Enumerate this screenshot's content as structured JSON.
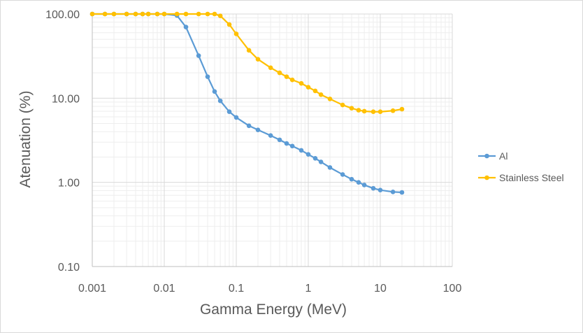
{
  "chart_data": {
    "type": "line",
    "title": "",
    "xlabel": "Gamma Energy (MeV)",
    "ylabel": "Atenuation (%)",
    "x_scale": "log",
    "y_scale": "log",
    "xlim": [
      0.001,
      100
    ],
    "ylim": [
      0.1,
      100
    ],
    "x_ticks": [
      "0.001",
      "0.01",
      "0.1",
      "1",
      "10",
      "100"
    ],
    "y_ticks": [
      "100.00",
      "10.00",
      "1.00",
      "0.10"
    ],
    "grid": true,
    "legend_position": "right",
    "series": [
      {
        "name": "Al",
        "color": "#5b9bd5",
        "x": [
          0.001,
          0.0015,
          0.002,
          0.003,
          0.004,
          0.005,
          0.006,
          0.008,
          0.01,
          0.015,
          0.02,
          0.03,
          0.04,
          0.05,
          0.06,
          0.08,
          0.1,
          0.15,
          0.2,
          0.3,
          0.4,
          0.5,
          0.6,
          0.8,
          1,
          1.25,
          1.5,
          2,
          3,
          4,
          5,
          6,
          8,
          10,
          15,
          20
        ],
        "y": [
          100,
          100,
          100,
          100,
          100,
          100,
          100,
          100,
          100,
          96,
          70,
          32,
          18,
          12,
          9.3,
          6.9,
          5.9,
          4.7,
          4.2,
          3.6,
          3.2,
          2.9,
          2.7,
          2.4,
          2.15,
          1.93,
          1.75,
          1.5,
          1.24,
          1.09,
          1.0,
          0.93,
          0.85,
          0.81,
          0.77,
          0.76
        ]
      },
      {
        "name": "Stainless Steel",
        "color": "#ffc000",
        "x": [
          0.001,
          0.0015,
          0.002,
          0.003,
          0.004,
          0.005,
          0.006,
          0.008,
          0.01,
          0.015,
          0.02,
          0.03,
          0.04,
          0.05,
          0.06,
          0.08,
          0.1,
          0.15,
          0.2,
          0.3,
          0.4,
          0.5,
          0.6,
          0.8,
          1,
          1.25,
          1.5,
          2,
          3,
          4,
          5,
          6,
          8,
          10,
          15,
          20
        ],
        "y": [
          100,
          100,
          100,
          100,
          100,
          100,
          100,
          100,
          100,
          100,
          100,
          100,
          100,
          100,
          95,
          75,
          58,
          37,
          29,
          23,
          20,
          18,
          16.5,
          15,
          13.5,
          12.2,
          11,
          9.8,
          8.3,
          7.6,
          7.2,
          7.0,
          6.9,
          6.9,
          7.1,
          7.4
        ]
      }
    ]
  }
}
